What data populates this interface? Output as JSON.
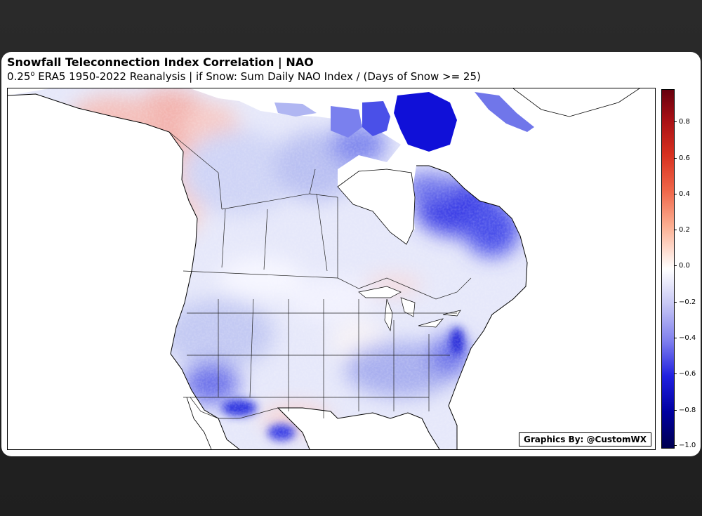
{
  "figure": {
    "title": "Snowfall Teleconnection Index Correlation | NAO",
    "subtitle_prefix": "0.25",
    "subtitle_sup": "o",
    "subtitle_rest": " ERA5 1950-2022 Reanalysis | if Snow: Sum Daily NAO Index / (Days of Snow >= 25)",
    "credit": "Graphics By: @CustomWX"
  },
  "colorbar": {
    "ticks": [
      "0.8",
      "0.6",
      "0.4",
      "0.2",
      "0.0",
      "−0.2",
      "−0.4",
      "−0.6",
      "−0.8",
      "−1.0"
    ],
    "range": [
      -1.0,
      1.0
    ],
    "colors": {
      "max": "#67000d",
      "zero": "#ffffff",
      "min": "#000050"
    }
  },
  "map": {
    "region": "North America",
    "colors": {
      "positive": "#f4a6a0",
      "neutral": "#ffffff",
      "weak_negative": "#c8cff5",
      "strong_negative": "#0000d0"
    }
  }
}
